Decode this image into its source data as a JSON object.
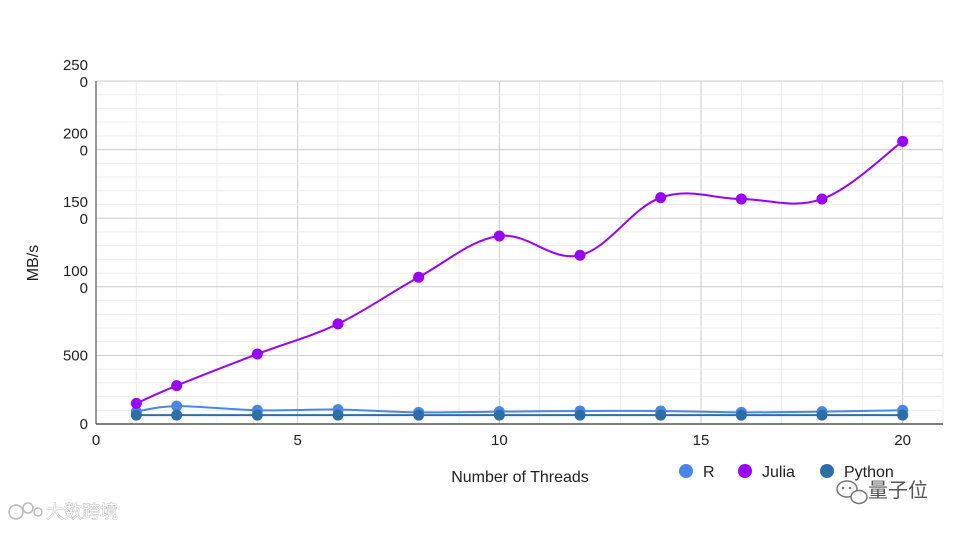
{
  "chart_data": {
    "type": "line",
    "x": [
      1,
      2,
      4,
      6,
      8,
      10,
      12,
      14,
      16,
      18,
      20
    ],
    "series": [
      {
        "name": "R",
        "color": "#4a86e8",
        "values": [
          90,
          130,
          100,
          105,
          85,
          90,
          95,
          95,
          85,
          90,
          100
        ]
      },
      {
        "name": "Julia",
        "color": "#9900ff",
        "values": [
          150,
          280,
          510,
          730,
          1070,
          1370,
          1230,
          1650,
          1640,
          1640,
          2060
        ]
      },
      {
        "name": "Python",
        "color": "#2b6fa8",
        "values": [
          65,
          65,
          65,
          65,
          65,
          65,
          65,
          65,
          65,
          65,
          65
        ]
      }
    ],
    "title": "",
    "xlabel": "Number of Threads",
    "ylabel": "MB/s",
    "xlim": [
      0,
      21
    ],
    "ylim": [
      0,
      2500
    ],
    "x_ticks": [
      0,
      5,
      10,
      15,
      20
    ],
    "y_ticks": [
      {
        "value": 0,
        "lines": [
          "0"
        ]
      },
      {
        "value": 500,
        "lines": [
          "500"
        ]
      },
      {
        "value": 1000,
        "lines": [
          "100",
          "0"
        ]
      },
      {
        "value": 1500,
        "lines": [
          "150",
          "0"
        ]
      },
      {
        "value": 2000,
        "lines": [
          "200",
          "0"
        ]
      },
      {
        "value": 2500,
        "lines": [
          "250",
          "0"
        ]
      }
    ],
    "grid": true,
    "legend_position": "bottom-right"
  },
  "watermarks": {
    "left": "大数跨境",
    "right": "量子位"
  }
}
